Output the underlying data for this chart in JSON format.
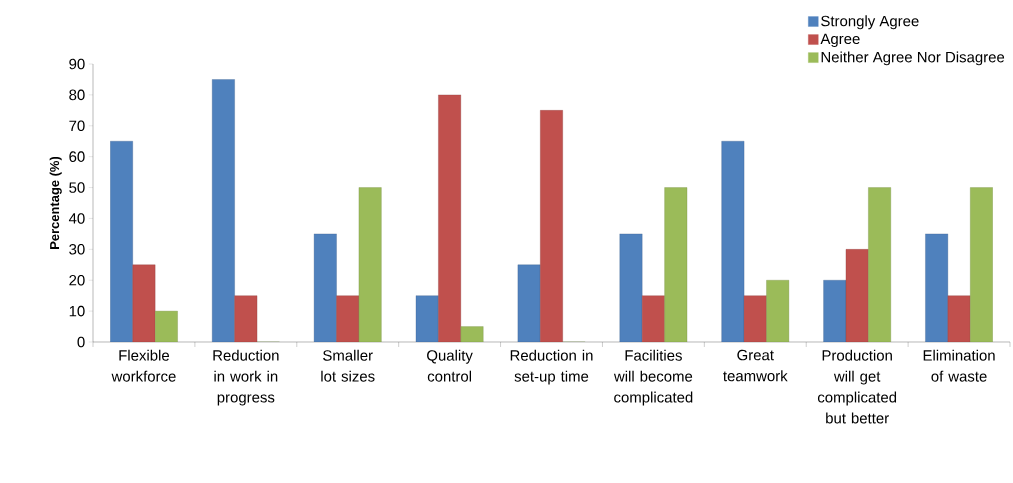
{
  "chart_data": {
    "type": "bar",
    "ylabel": "Percentage (%)",
    "categories": [
      "Flexible workforce",
      "Reduction in work in progress",
      "Smaller lot sizes",
      "Quality control",
      "Reduction in set-up time",
      "Facilities will become complicated",
      "Great teamwork",
      "Production will get complicated but better",
      "Elimination of waste"
    ],
    "series": [
      {
        "name": "Strongly Agree",
        "color": "#4f81bd",
        "values": [
          65,
          85,
          35,
          15,
          25,
          35,
          65,
          20,
          35
        ]
      },
      {
        "name": "Agree",
        "color": "#c0504d",
        "values": [
          25,
          15,
          15,
          80,
          75,
          15,
          15,
          30,
          15
        ]
      },
      {
        "name": "Neither Agree Nor Disagree",
        "color": "#9bbb59",
        "values": [
          10,
          0,
          50,
          5,
          0,
          50,
          20,
          50,
          50
        ]
      }
    ],
    "ylim": [
      0,
      90
    ],
    "yticks": [
      0,
      10,
      20,
      30,
      40,
      50,
      60,
      70,
      80,
      90
    ],
    "grid": false,
    "legend": "top right"
  }
}
